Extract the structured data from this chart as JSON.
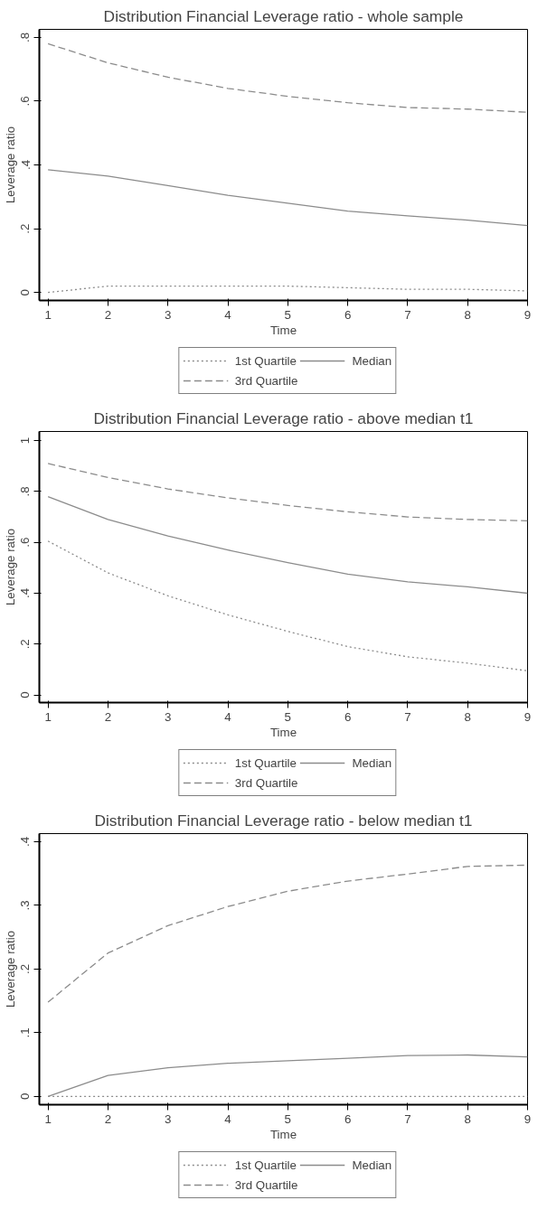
{
  "chart_data": [
    {
      "type": "line",
      "title": "Distribution Financial Leverage ratio - whole sample",
      "xlabel": "Time",
      "ylabel": "Leverage ratio",
      "x": [
        1,
        2,
        3,
        4,
        5,
        6,
        7,
        8,
        9
      ],
      "xlim": [
        0.855,
        9
      ],
      "xticks": [
        1,
        2,
        3,
        4,
        5,
        6,
        7,
        8,
        9
      ],
      "ylim": [
        -0.025,
        0.825
      ],
      "yticks": [
        0,
        {
          "value": 0.2,
          "label": ".2"
        },
        {
          "value": 0.4,
          "label": ".4"
        },
        {
          "value": 0.6,
          "label": ".6"
        },
        {
          "value": 0.8,
          "label": ".8"
        }
      ],
      "grid": false,
      "legend": "bottom",
      "marker": "none",
      "series": [
        {
          "name": "1st Quartile",
          "color": "#8c8c8c",
          "line_style": "dotted",
          "values": [
            0,
            0.02,
            0.02,
            0.02,
            0.02,
            0.015,
            0.01,
            0.01,
            0.005
          ]
        },
        {
          "name": "Median",
          "color": "#8c8c8c",
          "line_style": "solid",
          "values": [
            0.385,
            0.365,
            0.335,
            0.305,
            0.28,
            0.255,
            0.24,
            0.227,
            0.21
          ]
        },
        {
          "name": "3rd Quartile",
          "color": "#8c8c8c",
          "line_style": "dashed",
          "values": [
            0.78,
            0.72,
            0.675,
            0.64,
            0.615,
            0.595,
            0.58,
            0.575,
            0.565
          ]
        }
      ]
    },
    {
      "type": "line",
      "title": "Distribution Financial Leverage ratio - above median t1",
      "xlabel": "Time",
      "ylabel": "Leverage ratio",
      "x": [
        1,
        2,
        3,
        4,
        5,
        6,
        7,
        8,
        9
      ],
      "xlim": [
        0.855,
        9
      ],
      "xticks": [
        1,
        2,
        3,
        4,
        5,
        6,
        7,
        8,
        9
      ],
      "ylim": [
        -0.03,
        1.036
      ],
      "yticks": [
        0,
        {
          "value": 0.2,
          "label": ".2"
        },
        {
          "value": 0.4,
          "label": ".4"
        },
        {
          "value": 0.6,
          "label": ".6"
        },
        {
          "value": 0.8,
          "label": ".8"
        },
        1
      ],
      "grid": false,
      "legend": "bottom",
      "marker": "none",
      "series": [
        {
          "name": "1st Quartile",
          "color": "#8c8c8c",
          "line_style": "dotted",
          "values": [
            0.605,
            0.48,
            0.39,
            0.315,
            0.25,
            0.19,
            0.15,
            0.125,
            0.095
          ]
        },
        {
          "name": "Median",
          "color": "#8c8c8c",
          "line_style": "solid",
          "values": [
            0.78,
            0.69,
            0.625,
            0.57,
            0.52,
            0.475,
            0.445,
            0.425,
            0.4
          ]
        },
        {
          "name": "3rd Quartile",
          "color": "#8c8c8c",
          "line_style": "dashed",
          "values": [
            0.91,
            0.855,
            0.81,
            0.775,
            0.745,
            0.72,
            0.7,
            0.69,
            0.685
          ]
        }
      ]
    },
    {
      "type": "line",
      "title": "Distribution Financial Leverage ratio - below median t1",
      "xlabel": "Time",
      "ylabel": "Leverage ratio",
      "x": [
        1,
        2,
        3,
        4,
        5,
        6,
        7,
        8,
        9
      ],
      "xlim": [
        0.855,
        9
      ],
      "xticks": [
        1,
        2,
        3,
        4,
        5,
        6,
        7,
        8,
        9
      ],
      "ylim": [
        -0.013,
        0.4125
      ],
      "yticks": [
        0,
        {
          "value": 0.1,
          "label": ".1"
        },
        {
          "value": 0.2,
          "label": ".2"
        },
        {
          "value": 0.3,
          "label": ".3"
        },
        {
          "value": 0.4,
          "label": ".4"
        }
      ],
      "grid": false,
      "legend": "bottom",
      "marker": "none",
      "series": [
        {
          "name": "1st Quartile",
          "color": "#8c8c8c",
          "line_style": "dotted",
          "values": [
            0,
            0,
            0,
            0,
            0,
            0,
            0,
            0,
            0
          ]
        },
        {
          "name": "Median",
          "color": "#8c8c8c",
          "line_style": "solid",
          "values": [
            0,
            0.033,
            0.045,
            0.052,
            0.056,
            0.06,
            0.064,
            0.065,
            0.062
          ]
        },
        {
          "name": "3rd Quartile",
          "color": "#8c8c8c",
          "line_style": "dashed",
          "values": [
            0.148,
            0.225,
            0.268,
            0.298,
            0.322,
            0.338,
            0.349,
            0.361,
            0.363
          ]
        }
      ]
    }
  ]
}
